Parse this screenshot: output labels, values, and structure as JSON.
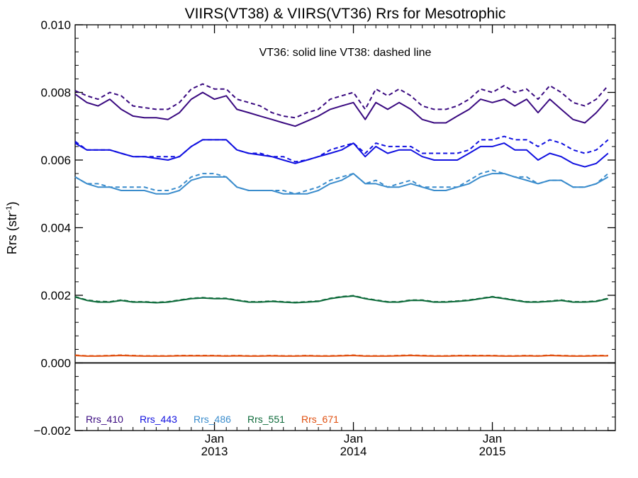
{
  "chart_data": {
    "type": "line",
    "title": "VIIRS(VT38) & VIIRS(VT36)  Rrs for Mesotrophic",
    "ylabel": "Rrs (str",
    "ylabel_sup": "-1",
    "ylabel_close": ")",
    "annotation": "VT36: solid line   VT38: dashed line",
    "ylim": [
      -0.002,
      0.01
    ],
    "y_ticks": [
      "0.010",
      "0.008",
      "0.006",
      "0.004",
      "0.002",
      "0.000",
      "−0.002"
    ],
    "y_tick_values": [
      0.01,
      0.008,
      0.006,
      0.004,
      0.002,
      0.0,
      -0.002
    ],
    "xlim": [
      "2012-01-01",
      "2015-11-20"
    ],
    "x_ticks": [
      {
        "month": "Jan",
        "year": "2013",
        "date": "2013-01-01"
      },
      {
        "month": "Jan",
        "year": "2014",
        "date": "2014-01-01"
      },
      {
        "month": "Jan",
        "year": "2015",
        "date": "2015-01-01"
      }
    ],
    "zero_line": true,
    "grid": false,
    "legend_position": "bottom-left",
    "x": [
      "2012-01-01",
      "2012-02-01",
      "2012-03-01",
      "2012-04-01",
      "2012-05-01",
      "2012-06-01",
      "2012-07-01",
      "2012-08-01",
      "2012-09-01",
      "2012-10-01",
      "2012-11-01",
      "2012-12-01",
      "2013-01-01",
      "2013-02-01",
      "2013-03-01",
      "2013-04-01",
      "2013-05-01",
      "2013-06-01",
      "2013-07-01",
      "2013-08-01",
      "2013-09-01",
      "2013-10-01",
      "2013-11-01",
      "2013-12-01",
      "2014-01-01",
      "2014-02-01",
      "2014-03-01",
      "2014-04-01",
      "2014-05-01",
      "2014-06-01",
      "2014-07-01",
      "2014-08-01",
      "2014-09-01",
      "2014-10-01",
      "2014-11-01",
      "2014-12-01",
      "2015-01-01",
      "2015-02-01",
      "2015-03-01",
      "2015-04-01",
      "2015-05-01",
      "2015-06-01",
      "2015-07-01",
      "2015-08-01",
      "2015-09-01",
      "2015-10-01",
      "2015-11-01"
    ],
    "series": [
      {
        "name": "Rrs_410",
        "color": "#3a0a80",
        "vt36": [
          0.00795,
          0.0077,
          0.0076,
          0.0078,
          0.0075,
          0.0073,
          0.00725,
          0.00725,
          0.0072,
          0.0074,
          0.0078,
          0.008,
          0.0078,
          0.0079,
          0.0075,
          0.0074,
          0.0073,
          0.0072,
          0.0071,
          0.007,
          0.00715,
          0.0073,
          0.0075,
          0.0076,
          0.0077,
          0.0072,
          0.0077,
          0.0075,
          0.0077,
          0.0075,
          0.0072,
          0.0071,
          0.0071,
          0.0073,
          0.0075,
          0.0078,
          0.0077,
          0.0078,
          0.0076,
          0.0078,
          0.0074,
          0.0078,
          0.0075,
          0.0072,
          0.0071,
          0.0074,
          0.0078
        ],
        "vt38": [
          0.00805,
          0.0079,
          0.0078,
          0.008,
          0.0079,
          0.0076,
          0.00755,
          0.0075,
          0.0075,
          0.0077,
          0.0081,
          0.00825,
          0.0081,
          0.0081,
          0.0078,
          0.0077,
          0.0076,
          0.0074,
          0.0073,
          0.00725,
          0.0074,
          0.0075,
          0.0078,
          0.0079,
          0.008,
          0.0075,
          0.0081,
          0.0079,
          0.0081,
          0.0079,
          0.0076,
          0.0075,
          0.0075,
          0.0076,
          0.0078,
          0.0081,
          0.008,
          0.0082,
          0.008,
          0.0081,
          0.0078,
          0.0082,
          0.008,
          0.0077,
          0.0076,
          0.0078,
          0.0082
        ]
      },
      {
        "name": "Rrs_443",
        "color": "#1010e0",
        "vt36": [
          0.0065,
          0.0063,
          0.0063,
          0.0063,
          0.0062,
          0.0061,
          0.0061,
          0.00605,
          0.006,
          0.0061,
          0.0064,
          0.0066,
          0.0066,
          0.0066,
          0.0063,
          0.0062,
          0.00615,
          0.0061,
          0.006,
          0.0059,
          0.006,
          0.0061,
          0.0062,
          0.0063,
          0.0065,
          0.0061,
          0.0064,
          0.0062,
          0.0063,
          0.0063,
          0.0061,
          0.006,
          0.006,
          0.006,
          0.0062,
          0.0064,
          0.0064,
          0.0065,
          0.0063,
          0.0063,
          0.006,
          0.0062,
          0.0061,
          0.0059,
          0.0058,
          0.0059,
          0.0062
        ],
        "vt38": [
          0.00655,
          0.0063,
          0.0063,
          0.0063,
          0.0062,
          0.0061,
          0.0061,
          0.0061,
          0.0061,
          0.0061,
          0.0064,
          0.0066,
          0.0066,
          0.0066,
          0.0063,
          0.0062,
          0.0062,
          0.0061,
          0.0061,
          0.00595,
          0.006,
          0.0061,
          0.0063,
          0.0064,
          0.0065,
          0.0062,
          0.0065,
          0.0064,
          0.0064,
          0.0064,
          0.0062,
          0.0062,
          0.0062,
          0.0062,
          0.0063,
          0.0066,
          0.0066,
          0.0067,
          0.0066,
          0.0066,
          0.0064,
          0.0066,
          0.0065,
          0.0063,
          0.0062,
          0.0063,
          0.0066
        ]
      },
      {
        "name": "Rrs_486",
        "color": "#3a8ccc",
        "vt36": [
          0.0055,
          0.0053,
          0.0052,
          0.0052,
          0.0051,
          0.0051,
          0.0051,
          0.005,
          0.005,
          0.0051,
          0.0054,
          0.0055,
          0.0055,
          0.0055,
          0.0052,
          0.0051,
          0.0051,
          0.0051,
          0.005,
          0.005,
          0.005,
          0.0051,
          0.0053,
          0.0054,
          0.0056,
          0.0053,
          0.0053,
          0.0052,
          0.0052,
          0.0053,
          0.0052,
          0.0051,
          0.0051,
          0.0052,
          0.0053,
          0.0055,
          0.0056,
          0.0056,
          0.0055,
          0.0054,
          0.0053,
          0.0054,
          0.0054,
          0.0052,
          0.0052,
          0.0053,
          0.0055
        ],
        "vt38": [
          0.0055,
          0.0053,
          0.0053,
          0.0052,
          0.0052,
          0.0052,
          0.0052,
          0.0051,
          0.0051,
          0.0052,
          0.0055,
          0.0056,
          0.0056,
          0.0055,
          0.0052,
          0.0051,
          0.0051,
          0.0051,
          0.0051,
          0.005,
          0.0051,
          0.0052,
          0.0054,
          0.0055,
          0.0056,
          0.0053,
          0.0054,
          0.0052,
          0.0053,
          0.0054,
          0.0052,
          0.0052,
          0.0052,
          0.0052,
          0.0054,
          0.0056,
          0.0057,
          0.0056,
          0.0055,
          0.0055,
          0.0053,
          0.0054,
          0.0054,
          0.0052,
          0.0052,
          0.0053,
          0.0056
        ]
      },
      {
        "name": "Rrs_551",
        "color": "#0d6a3a",
        "vt36": [
          0.00195,
          0.00185,
          0.0018,
          0.0018,
          0.00185,
          0.0018,
          0.0018,
          0.00178,
          0.0018,
          0.00185,
          0.0019,
          0.00192,
          0.0019,
          0.0019,
          0.00185,
          0.0018,
          0.0018,
          0.00182,
          0.0018,
          0.00178,
          0.0018,
          0.00182,
          0.0019,
          0.00195,
          0.00198,
          0.0019,
          0.00185,
          0.0018,
          0.0018,
          0.00185,
          0.00185,
          0.0018,
          0.0018,
          0.00182,
          0.00185,
          0.0019,
          0.00195,
          0.0019,
          0.00185,
          0.0018,
          0.0018,
          0.00182,
          0.00185,
          0.0018,
          0.0018,
          0.00182,
          0.0019
        ],
        "vt38": [
          0.00196,
          0.00186,
          0.00182,
          0.00181,
          0.00186,
          0.00181,
          0.00181,
          0.00179,
          0.00181,
          0.00186,
          0.00191,
          0.00193,
          0.00191,
          0.00191,
          0.00186,
          0.00181,
          0.00181,
          0.00183,
          0.00181,
          0.00179,
          0.00181,
          0.00183,
          0.00191,
          0.00196,
          0.00199,
          0.00191,
          0.00186,
          0.00181,
          0.00181,
          0.00186,
          0.00186,
          0.00181,
          0.00181,
          0.00183,
          0.00186,
          0.00191,
          0.00196,
          0.00191,
          0.00186,
          0.00181,
          0.00181,
          0.00183,
          0.00186,
          0.00181,
          0.00181,
          0.00183,
          0.00191
        ]
      },
      {
        "name": "Rrs_671",
        "color": "#e05010",
        "vt36": [
          0.00022,
          0.0002,
          0.0002,
          0.00021,
          0.00022,
          0.00021,
          0.0002,
          0.0002,
          0.0002,
          0.00021,
          0.00021,
          0.00021,
          0.00021,
          0.0002,
          0.00021,
          0.0002,
          0.0002,
          0.00021,
          0.0002,
          0.0002,
          0.00021,
          0.0002,
          0.0002,
          0.00021,
          0.00022,
          0.0002,
          0.0002,
          0.0002,
          0.00021,
          0.00022,
          0.00021,
          0.0002,
          0.0002,
          0.00021,
          0.00021,
          0.00021,
          0.00021,
          0.0002,
          0.0002,
          0.00021,
          0.0002,
          0.00022,
          0.00021,
          0.0002,
          0.0002,
          0.00021,
          0.00021
        ],
        "vt38": [
          0.00023,
          0.00021,
          0.00021,
          0.00022,
          0.00023,
          0.00022,
          0.00021,
          0.00021,
          0.00021,
          0.00022,
          0.00022,
          0.00022,
          0.00022,
          0.00021,
          0.00022,
          0.00021,
          0.00021,
          0.00022,
          0.00021,
          0.00021,
          0.00022,
          0.00021,
          0.00021,
          0.00022,
          0.00023,
          0.00021,
          0.00021,
          0.00021,
          0.00022,
          0.00023,
          0.00022,
          0.00021,
          0.00021,
          0.00022,
          0.00022,
          0.00022,
          0.00022,
          0.00021,
          0.00021,
          0.00022,
          0.00021,
          0.00023,
          0.00022,
          0.00021,
          0.00021,
          0.00022,
          0.00022
        ]
      }
    ]
  }
}
